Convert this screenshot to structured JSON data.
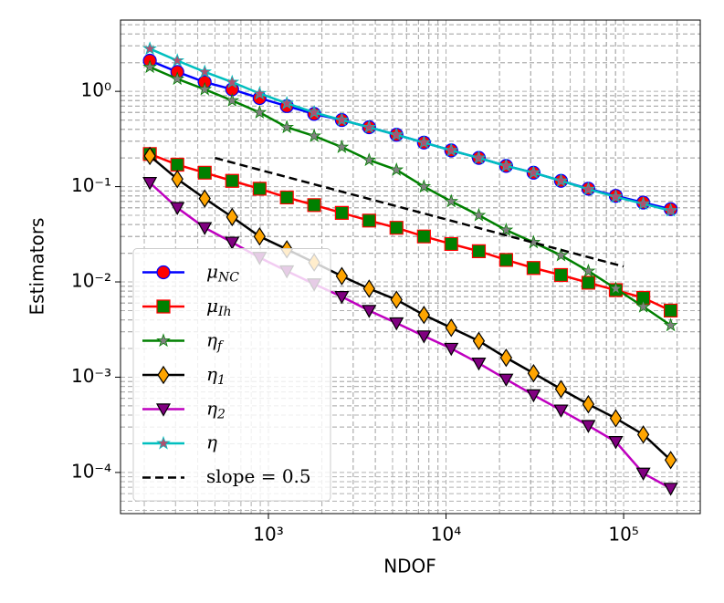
{
  "chart_data": {
    "type": "line",
    "x_label": "NDOF",
    "y_label": "Estimators",
    "log_x": true,
    "log_y": true,
    "grid": true,
    "legend": "lower left",
    "xlim": [
      147,
      270000
    ],
    "ylim": [
      3.7e-05,
      5.6
    ],
    "xticks": [
      {
        "value": 1000,
        "label": "10³"
      },
      {
        "value": 10000,
        "label": "10⁴"
      },
      {
        "value": 100000,
        "label": "10⁵"
      }
    ],
    "yticks": [
      {
        "value": 0.0001,
        "label": "10⁻⁴"
      },
      {
        "value": 0.001,
        "label": "10⁻³"
      },
      {
        "value": 0.01,
        "label": "10⁻²"
      },
      {
        "value": 0.1,
        "label": "10⁻¹"
      },
      {
        "value": 1,
        "label": "10⁰"
      }
    ],
    "x": [
      215,
      307,
      438,
      625,
      892,
      1270,
      1810,
      2590,
      3690,
      5260,
      7510,
      10700,
      15300,
      21800,
      31100,
      44400,
      63300,
      90300,
      129000,
      184000
    ],
    "series": [
      {
        "name": "μNC",
        "color": "#0000ff",
        "marker": "circle",
        "marker_color": "#ff0000",
        "values": [
          2.1,
          1.6,
          1.25,
          1.05,
          0.85,
          0.7,
          0.58,
          0.5,
          0.42,
          0.35,
          0.29,
          0.24,
          0.2,
          0.165,
          0.14,
          0.115,
          0.095,
          0.08,
          0.068,
          0.058
        ]
      },
      {
        "name": "μIh",
        "color": "#ff0000",
        "marker": "square",
        "marker_color": "#008000",
        "values": [
          0.22,
          0.17,
          0.14,
          0.115,
          0.095,
          0.077,
          0.064,
          0.053,
          0.044,
          0.037,
          0.03,
          0.025,
          0.021,
          0.017,
          0.014,
          0.0118,
          0.0098,
          0.0082,
          0.0068,
          0.005
        ]
      },
      {
        "name": "ηf",
        "color": "#008000",
        "marker": "star",
        "marker_color": "#808080",
        "values": [
          1.8,
          1.35,
          1.05,
          0.8,
          0.6,
          0.42,
          0.34,
          0.26,
          0.19,
          0.15,
          0.1,
          0.07,
          0.05,
          0.035,
          0.026,
          0.019,
          0.013,
          0.0085,
          0.0055,
          0.0035
        ]
      },
      {
        "name": "η1",
        "color": "#000000",
        "marker": "diamond",
        "marker_color": "#ffa500",
        "values": [
          0.21,
          0.12,
          0.075,
          0.048,
          0.03,
          0.022,
          0.016,
          0.0115,
          0.0085,
          0.0065,
          0.0045,
          0.0033,
          0.0024,
          0.0016,
          0.0011,
          0.00075,
          0.00052,
          0.00037,
          0.00025,
          0.000135
        ]
      },
      {
        "name": "η2",
        "color": "#bf00bf",
        "marker": "triangle-down",
        "marker_color": "#800080",
        "values": [
          0.11,
          0.06,
          0.037,
          0.026,
          0.018,
          0.013,
          0.0095,
          0.007,
          0.005,
          0.0037,
          0.0027,
          0.002,
          0.0014,
          0.00095,
          0.00065,
          0.00045,
          0.00031,
          0.00021,
          9.8e-05,
          6.8e-05
        ]
      },
      {
        "name": "η",
        "color": "#00bfbf",
        "marker": "star",
        "marker_color": "#b05070",
        "values": [
          2.8,
          2.1,
          1.6,
          1.25,
          0.95,
          0.75,
          0.6,
          0.5,
          0.42,
          0.35,
          0.29,
          0.24,
          0.2,
          0.165,
          0.14,
          0.115,
          0.094,
          0.078,
          0.066,
          0.056
        ]
      }
    ],
    "reference_line": {
      "name": "slope = 0.5",
      "color": "#000000",
      "dashed": true,
      "x": [
        500,
        100000
      ],
      "values": [
        0.2,
        0.0145
      ]
    }
  }
}
